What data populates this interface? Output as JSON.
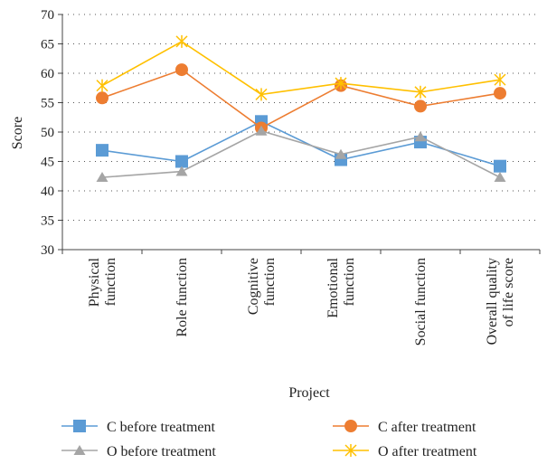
{
  "chart_data": {
    "type": "line",
    "title": "",
    "xlabel": "Project",
    "ylabel": "Score",
    "ylim": [
      30,
      70
    ],
    "yticks": [
      30,
      35,
      40,
      45,
      50,
      55,
      60,
      65,
      70
    ],
    "grid": "horizontal dotted",
    "legend_position": "bottom",
    "categories": [
      [
        "Physical",
        "function"
      ],
      [
        "Role function"
      ],
      [
        "Cognitive",
        "function"
      ],
      [
        "Emotional",
        "function"
      ],
      [
        "Social function"
      ],
      [
        "Overall quality",
        "of life score"
      ]
    ],
    "series": [
      {
        "name": "C before treatment",
        "color": "#5b9bd5",
        "marker": "square",
        "values": [
          46.9,
          45.0,
          51.8,
          45.3,
          48.3,
          44.2
        ]
      },
      {
        "name": "C after treatment",
        "color": "#ed7d31",
        "marker": "circle",
        "values": [
          55.8,
          60.6,
          50.7,
          57.9,
          54.4,
          56.6
        ]
      },
      {
        "name": "O before treatment",
        "color": "#a5a5a5",
        "marker": "triangle",
        "values": [
          42.3,
          43.3,
          50.2,
          46.2,
          49.2,
          42.3
        ]
      },
      {
        "name": "O after treatment",
        "color": "#ffc000",
        "marker": "star",
        "values": [
          57.9,
          65.4,
          56.4,
          58.3,
          56.8,
          58.9
        ]
      }
    ]
  }
}
